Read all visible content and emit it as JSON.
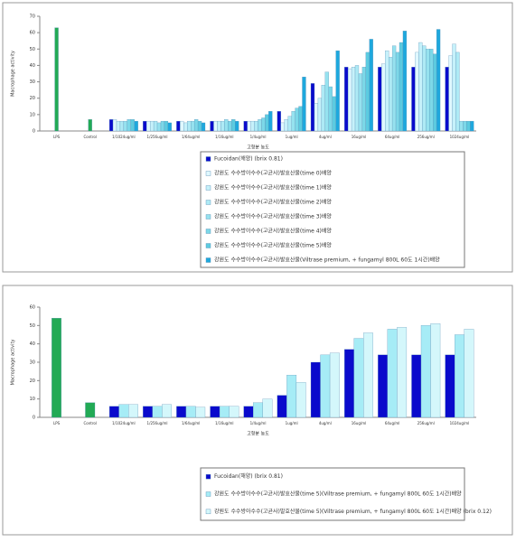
{
  "chart_data": [
    {
      "type": "bar",
      "x_label": "고형분 농도",
      "y_label": "Macrophage activity",
      "categories": [
        "LPS",
        "Control",
        "1/1024ug/ml",
        "1/256ug/ml",
        "1/64ug/ml",
        "1/16ug/ml",
        "1/4ug/ml",
        "1ug/ml",
        "4ug/ml",
        "16ug/ml",
        "64ug/ml",
        "256ug/ml",
        "1024ug/ml"
      ],
      "ylim": [
        0,
        70
      ],
      "yticks": [
        0,
        10,
        20,
        30,
        40,
        50,
        60,
        70
      ],
      "grid": false,
      "series": [
        {
          "color": "#22aa55",
          "values": [
            63,
            7,
            null,
            null,
            null,
            null,
            null,
            null,
            null,
            null,
            null,
            null,
            null
          ]
        },
        {
          "name": "Fucoidan(해양) (brix 0.81)",
          "color": "#0a0acc",
          "values": [
            null,
            null,
            7,
            6,
            6,
            6,
            6,
            12,
            29,
            39,
            39,
            39,
            39
          ]
        },
        {
          "name": "강원도 수수방아수수(고균사)발효산물(time 0)배양",
          "color": "#e0f8ff",
          "values": [
            null,
            null,
            7,
            6,
            6,
            6,
            6,
            5,
            17,
            38,
            41,
            48,
            46
          ]
        },
        {
          "name": "강원도 수수방아수수(고균사)발효산물(time 1)배양",
          "color": "#c6f1fa",
          "values": [
            null,
            null,
            6,
            6,
            5,
            6,
            6,
            7,
            20,
            39,
            49,
            54,
            53
          ]
        },
        {
          "name": "강원도 수수방아수수(고균사)발효산물(time 2)배양",
          "color": "#aeeaf5",
          "values": [
            null,
            null,
            6,
            6,
            6,
            6,
            6,
            9,
            28,
            40,
            45,
            52,
            48
          ]
        },
        {
          "name": "강원도 수수방아수수(고균사)발효산물(time 3)배양",
          "color": "#96e2ef",
          "values": [
            null,
            null,
            6,
            5,
            6,
            7,
            7,
            12,
            36,
            35,
            52,
            50,
            6
          ]
        },
        {
          "name": "강원도 수수방아수수(고균사)발효산물(time 4)배양",
          "color": "#7cd8e8",
          "values": [
            null,
            null,
            7,
            6,
            7,
            6,
            8,
            14,
            27,
            39,
            48,
            50,
            6
          ]
        },
        {
          "name": "강원도 수수방아수수(고균사)발효산물(time 5)배양",
          "color": "#5ccbe0",
          "values": [
            null,
            null,
            7,
            6,
            6,
            7,
            10,
            15,
            21,
            48,
            54,
            47,
            6
          ]
        },
        {
          "name": "강원도 수수방아수수(고균사)발효산물(Viltrase premium, + fungamyl 800L 60도 1시간)배양",
          "color": "#1ea8dd",
          "values": [
            null,
            null,
            6,
            5,
            5,
            6,
            12,
            33,
            49,
            56,
            61,
            62,
            6
          ]
        }
      ]
    },
    {
      "type": "bar",
      "x_label": "고형분 농도",
      "y_label": "Macrophage activity",
      "categories": [
        "LPS",
        "Control",
        "1/1024ug/ml",
        "1/256ug/ml",
        "1/64ug/ml",
        "1/16ug/ml",
        "1/4ug/ml",
        "1ug/ml",
        "4ug/ml",
        "16ug/ml",
        "64ug/ml",
        "256ug/ml",
        "1024ug/ml"
      ],
      "ylim": [
        0,
        60
      ],
      "yticks": [
        0,
        10,
        20,
        30,
        40,
        50,
        60
      ],
      "grid": false,
      "series": [
        {
          "color": "#22aa55",
          "values": [
            54,
            8,
            null,
            null,
            null,
            null,
            null,
            null,
            null,
            null,
            null,
            null,
            null
          ]
        },
        {
          "name": "Fucoidan(해양) (brix 0.81)",
          "color": "#0a0acc",
          "values": [
            null,
            null,
            6,
            6,
            6,
            6,
            6,
            12,
            30,
            37,
            34,
            34,
            34
          ]
        },
        {
          "name": "강원도 수수방아수수(고균사)발효산물(time 5)(Viltrase premium, + fungamyl 800L 60도 1시간)배양",
          "color": "#a6ecf6",
          "values": [
            null,
            null,
            7,
            6,
            6,
            6,
            8,
            23,
            34,
            43,
            48,
            50,
            45
          ]
        },
        {
          "name": "강원도 수수방아수수(고균사)발효산물(time 5)(Viltrase premium, + fungamyl 800L 60도 1시간)배양 (brix 0.12)",
          "color": "#d4f7fb",
          "values": [
            null,
            null,
            7,
            7,
            5.5,
            6,
            10,
            19,
            35,
            46,
            49,
            51,
            48
          ]
        }
      ]
    }
  ]
}
